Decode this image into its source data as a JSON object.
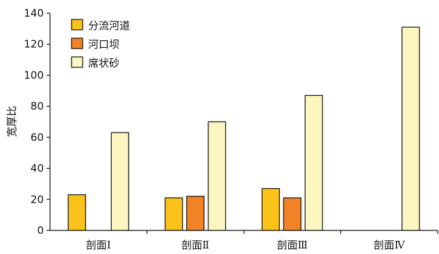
{
  "chart_data": {
    "type": "bar",
    "ylabel": "宽厚比",
    "xlabel": "",
    "title": "",
    "ylim": [
      0,
      140
    ],
    "yticks": [
      0,
      20,
      40,
      60,
      80,
      100,
      120,
      140
    ],
    "grid": false,
    "legend_position": "top-left",
    "categories": [
      "剖面Ⅰ",
      "剖面Ⅱ",
      "剖面Ⅲ",
      "剖面Ⅳ"
    ],
    "series": [
      {
        "name": "分流河道",
        "color": "#FBC21A",
        "values": [
          23,
          21,
          27,
          null
        ]
      },
      {
        "name": "河口坝",
        "color": "#F28226",
        "values": [
          null,
          22,
          21,
          null
        ]
      },
      {
        "name": "席状砂",
        "color": "#FBF6BF",
        "values": [
          63,
          70,
          87,
          131
        ]
      }
    ]
  }
}
